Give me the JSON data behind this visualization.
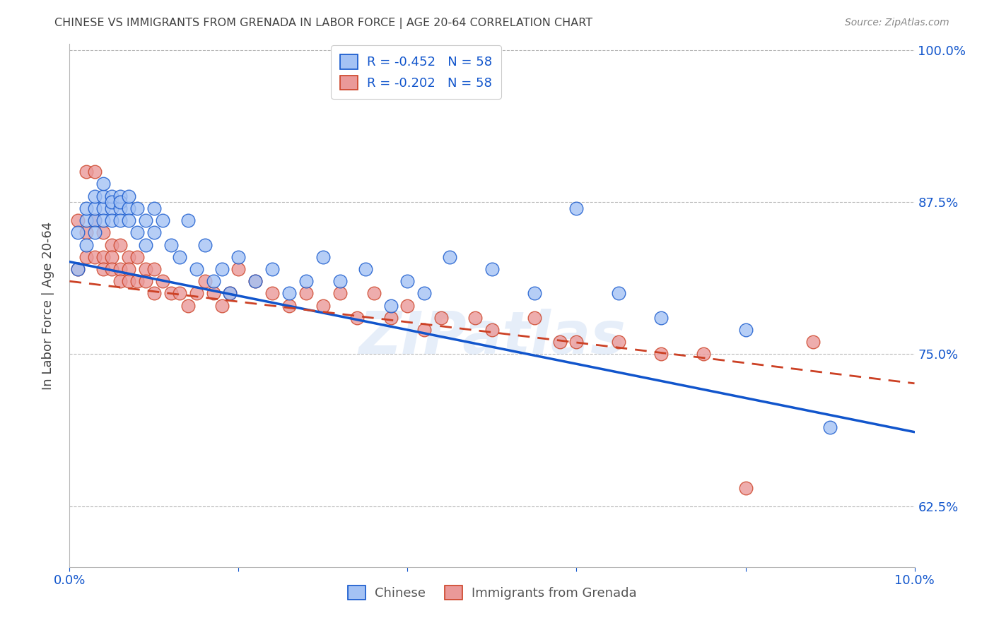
{
  "title": "CHINESE VS IMMIGRANTS FROM GRENADA IN LABOR FORCE | AGE 20-64 CORRELATION CHART",
  "source": "Source: ZipAtlas.com",
  "ylabel": "In Labor Force | Age 20-64",
  "xlim": [
    0.0,
    0.1
  ],
  "ylim": [
    0.575,
    1.005
  ],
  "yticks": [
    0.625,
    0.75,
    0.875,
    1.0
  ],
  "ytick_labels": [
    "62.5%",
    "75.0%",
    "87.5%",
    "100.0%"
  ],
  "xticks": [
    0.0,
    0.02,
    0.04,
    0.06,
    0.08,
    0.1
  ],
  "xtick_labels": [
    "0.0%",
    "",
    "",
    "",
    "",
    "10.0%"
  ],
  "legend_r_blue": "-0.452",
  "legend_n_blue": "58",
  "legend_r_pink": "-0.202",
  "legend_n_pink": "58",
  "blue_color": "#a4c2f4",
  "pink_color": "#ea9999",
  "line_blue": "#1155cc",
  "line_pink": "#cc4125",
  "bg_color": "#ffffff",
  "grid_color": "#b7b7b7",
  "title_color": "#434343",
  "axis_color": "#1155cc",
  "watermark": "ZIPatlas",
  "chinese_x": [
    0.001,
    0.001,
    0.002,
    0.002,
    0.002,
    0.003,
    0.003,
    0.003,
    0.003,
    0.004,
    0.004,
    0.004,
    0.004,
    0.005,
    0.005,
    0.005,
    0.005,
    0.006,
    0.006,
    0.006,
    0.006,
    0.007,
    0.007,
    0.007,
    0.008,
    0.008,
    0.009,
    0.009,
    0.01,
    0.01,
    0.011,
    0.012,
    0.013,
    0.014,
    0.015,
    0.016,
    0.017,
    0.018,
    0.019,
    0.02,
    0.022,
    0.024,
    0.026,
    0.028,
    0.03,
    0.032,
    0.035,
    0.038,
    0.04,
    0.042,
    0.045,
    0.05,
    0.055,
    0.06,
    0.065,
    0.07,
    0.08,
    0.09
  ],
  "chinese_y": [
    0.82,
    0.85,
    0.84,
    0.86,
    0.87,
    0.86,
    0.87,
    0.88,
    0.85,
    0.87,
    0.88,
    0.86,
    0.89,
    0.87,
    0.88,
    0.86,
    0.875,
    0.87,
    0.88,
    0.86,
    0.875,
    0.87,
    0.88,
    0.86,
    0.87,
    0.85,
    0.86,
    0.84,
    0.85,
    0.87,
    0.86,
    0.84,
    0.83,
    0.86,
    0.82,
    0.84,
    0.81,
    0.82,
    0.8,
    0.83,
    0.81,
    0.82,
    0.8,
    0.81,
    0.83,
    0.81,
    0.82,
    0.79,
    0.81,
    0.8,
    0.83,
    0.82,
    0.8,
    0.87,
    0.8,
    0.78,
    0.77,
    0.69
  ],
  "grenada_x": [
    0.001,
    0.001,
    0.002,
    0.002,
    0.002,
    0.003,
    0.003,
    0.003,
    0.004,
    0.004,
    0.004,
    0.005,
    0.005,
    0.005,
    0.006,
    0.006,
    0.006,
    0.007,
    0.007,
    0.007,
    0.008,
    0.008,
    0.009,
    0.009,
    0.01,
    0.01,
    0.011,
    0.012,
    0.013,
    0.014,
    0.015,
    0.016,
    0.017,
    0.018,
    0.019,
    0.02,
    0.022,
    0.024,
    0.026,
    0.028,
    0.03,
    0.032,
    0.034,
    0.036,
    0.038,
    0.04,
    0.042,
    0.044,
    0.048,
    0.05,
    0.055,
    0.058,
    0.06,
    0.065,
    0.07,
    0.075,
    0.08,
    0.088
  ],
  "grenada_y": [
    0.82,
    0.86,
    0.83,
    0.85,
    0.9,
    0.86,
    0.83,
    0.9,
    0.83,
    0.85,
    0.82,
    0.84,
    0.83,
    0.82,
    0.84,
    0.82,
    0.81,
    0.83,
    0.82,
    0.81,
    0.83,
    0.81,
    0.82,
    0.81,
    0.82,
    0.8,
    0.81,
    0.8,
    0.8,
    0.79,
    0.8,
    0.81,
    0.8,
    0.79,
    0.8,
    0.82,
    0.81,
    0.8,
    0.79,
    0.8,
    0.79,
    0.8,
    0.78,
    0.8,
    0.78,
    0.79,
    0.77,
    0.78,
    0.78,
    0.77,
    0.78,
    0.76,
    0.76,
    0.76,
    0.75,
    0.75,
    0.64,
    0.76
  ],
  "blue_trendline_x": [
    0.0,
    0.1
  ],
  "blue_trendline_y": [
    0.826,
    0.686
  ],
  "pink_trendline_x": [
    0.0,
    0.1
  ],
  "pink_trendline_y": [
    0.81,
    0.726
  ]
}
